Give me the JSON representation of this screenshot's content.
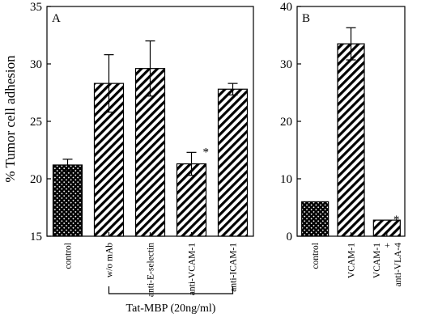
{
  "chart_data": [
    {
      "panel": "A",
      "type": "bar",
      "ylabel": "% Tumor cell adhesion",
      "ylim": [
        15,
        35
      ],
      "yticks": [
        15,
        20,
        25,
        30,
        35
      ],
      "categories": [
        "control",
        "w/o mAb",
        "anti-E-selectin",
        "anti-VCAM-1",
        "anti-ICAM-1"
      ],
      "values": [
        21.2,
        28.3,
        29.6,
        21.3,
        27.8
      ],
      "errors": [
        0.5,
        2.5,
        2.4,
        1.0,
        0.5
      ],
      "patterns": [
        "crosshatch",
        "diagonal",
        "diagonal",
        "diagonal",
        "diagonal"
      ],
      "significant": [
        false,
        false,
        false,
        true,
        false
      ],
      "marker": "*",
      "group_label": "Tat-MBP (20ng/ml)",
      "group_span": [
        1,
        4
      ]
    },
    {
      "panel": "B",
      "type": "bar",
      "ylim": [
        0,
        40
      ],
      "yticks": [
        0,
        10,
        20,
        30,
        40
      ],
      "categories": [
        "control",
        "VCAM-1",
        "VCAM-1 + anti-VLA-4"
      ],
      "category_lines": [
        [
          "control"
        ],
        [
          "VCAM-1"
        ],
        [
          "VCAM-1",
          "+",
          "anti-VLA-4"
        ]
      ],
      "values": [
        6.0,
        33.5,
        2.8
      ],
      "errors": [
        0.0,
        2.8,
        0.0
      ],
      "patterns": [
        "crosshatch",
        "diagonal",
        "diagonal"
      ],
      "significant": [
        false,
        false,
        true
      ],
      "marker": "*"
    }
  ]
}
